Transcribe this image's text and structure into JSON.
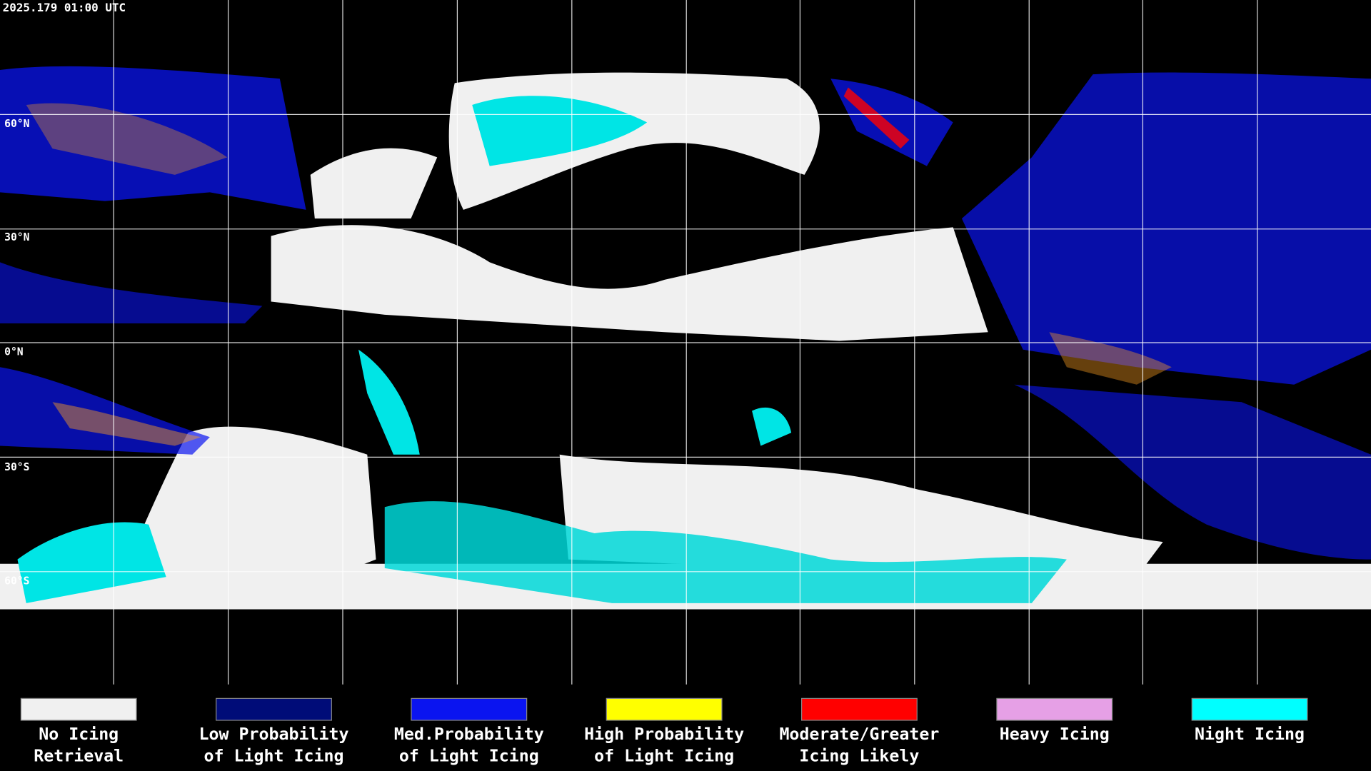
{
  "header": {
    "timestamp": "2025.179 01:00 UTC"
  },
  "map": {
    "lat_labels": [
      "60°N",
      "30°N",
      "0°N",
      "30°S",
      "60°S"
    ]
  },
  "legend": {
    "items": [
      {
        "lines": [
          "No Icing",
          "Retrieval"
        ],
        "color": "#f0f0f0"
      },
      {
        "lines": [
          "Low Probability",
          "of Light Icing"
        ],
        "color": "#000c78"
      },
      {
        "lines": [
          "Med.Probability",
          "of Light Icing"
        ],
        "color": "#0a14f0"
      },
      {
        "lines": [
          "High Probability",
          "of Light Icing"
        ],
        "color": "#ffff00"
      },
      {
        "lines": [
          "Moderate/Greater",
          "Icing Likely"
        ],
        "color": "#ff0000"
      },
      {
        "lines": [
          "Heavy Icing"
        ],
        "color": "#e6a0e6"
      },
      {
        "lines": [
          "Night Icing"
        ],
        "color": "#00ffff"
      }
    ]
  }
}
